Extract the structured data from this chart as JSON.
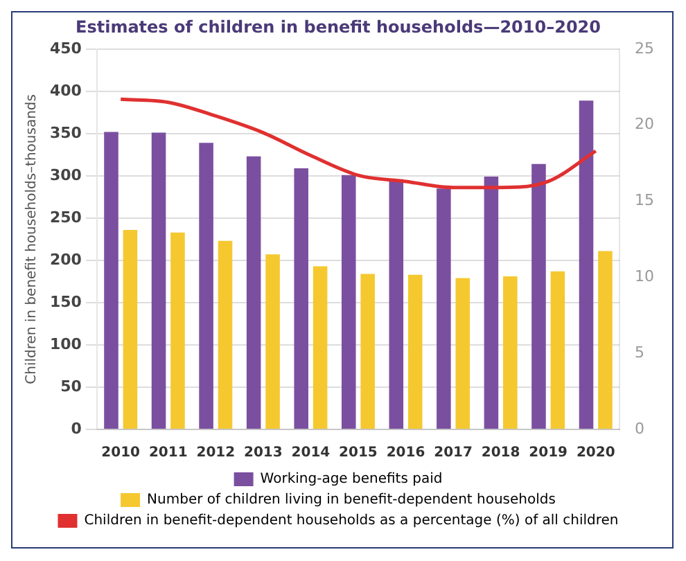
{
  "chart_data": {
    "type": "bar",
    "title": "Estimates of children in benefit households—2010–2020",
    "ylabel": "Children in benefit households–thousands",
    "categories": [
      "2010",
      "2011",
      "2012",
      "2013",
      "2014",
      "2015",
      "2016",
      "2017",
      "2018",
      "2019",
      "2020"
    ],
    "series": [
      {
        "name": "Working-age benefits paid",
        "color": "#7b4fa0",
        "values": [
          352,
          351,
          339,
          323,
          309,
          301,
          296,
          285,
          299,
          314,
          389
        ]
      },
      {
        "name": "Number of children living in benefit-dependent households",
        "color": "#f5c830",
        "values": [
          236,
          233,
          223,
          207,
          193,
          184,
          183,
          179,
          181,
          187,
          211
        ]
      },
      {
        "name": "Children in benefit-dependent households as a percentage (%) of all children",
        "type": "line",
        "axis": "y2",
        "color": "#e03030",
        "values": [
          21.7,
          21.5,
          20.6,
          19.5,
          18.0,
          16.7,
          16.3,
          15.9,
          15.9,
          16.3,
          18.3
        ]
      }
    ],
    "ylim": [
      0,
      450
    ],
    "yticks": [
      0,
      50,
      100,
      150,
      200,
      250,
      300,
      350,
      400,
      450
    ],
    "y2lim": [
      0,
      25
    ],
    "y2ticks": [
      0,
      5,
      10,
      15,
      20,
      25
    ],
    "grid": "y",
    "legend": "bottom",
    "marker": "none",
    "line_style": "solid"
  }
}
